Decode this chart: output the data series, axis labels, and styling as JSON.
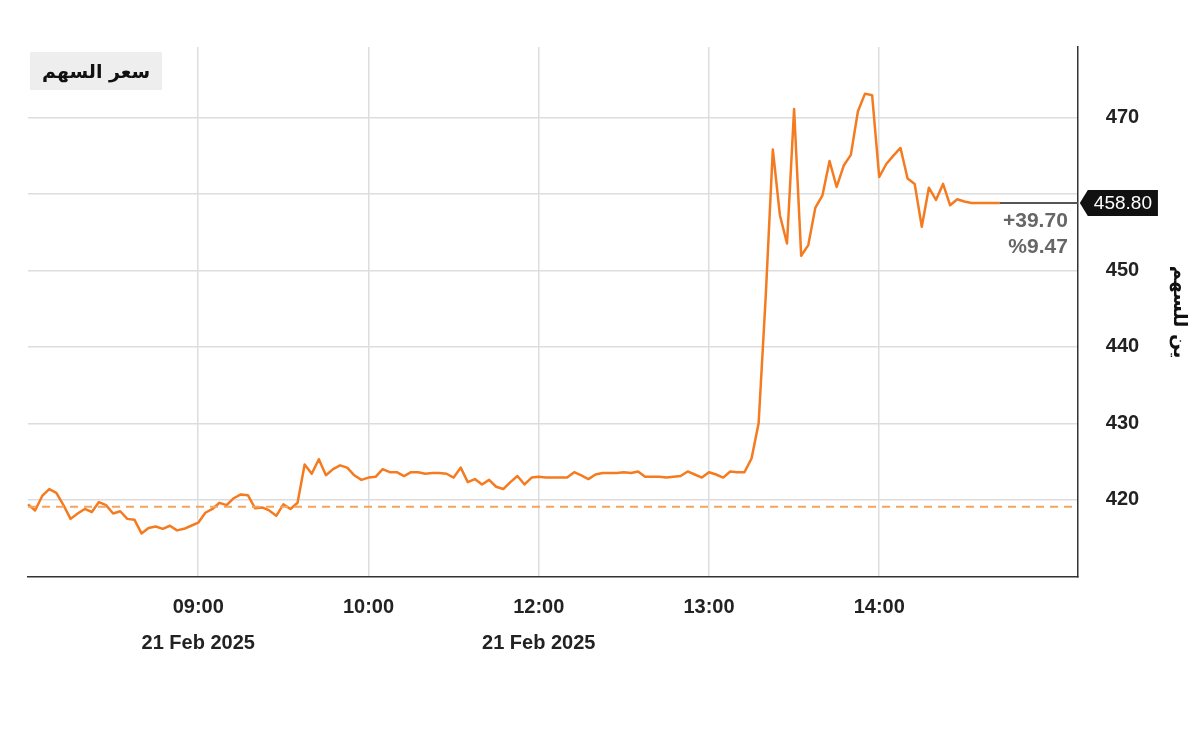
{
  "chart_data": {
    "type": "line",
    "title": "سعر السهم",
    "ylabel": "ين للسهم",
    "categories": [
      null,
      null,
      null,
      null,
      null,
      null,
      null,
      null,
      null,
      null,
      null,
      null,
      null,
      null,
      null,
      null,
      null,
      null,
      null,
      null,
      null,
      null,
      null,
      null,
      "09:00\n21 Feb 2025",
      null,
      null,
      null,
      null,
      null,
      null,
      null,
      null,
      null,
      null,
      null,
      null,
      null,
      null,
      null,
      null,
      null,
      null,
      null,
      null,
      null,
      null,
      null,
      "10:00",
      null,
      null,
      null,
      null,
      null,
      null,
      null,
      null,
      null,
      null,
      null,
      null,
      null,
      null,
      null,
      null,
      null,
      null,
      null,
      null,
      null,
      null,
      null,
      "12:00\n21 Feb 2025",
      null,
      null,
      null,
      null,
      null,
      null,
      null,
      null,
      null,
      null,
      null,
      null,
      null,
      null,
      null,
      null,
      null,
      null,
      null,
      null,
      null,
      null,
      null,
      "13:00",
      null,
      null,
      null,
      null,
      null,
      null,
      null,
      null,
      null,
      null,
      null,
      null,
      null,
      null,
      null,
      null,
      null,
      null,
      null,
      null,
      null,
      null,
      null,
      "14:00",
      null,
      null,
      null,
      null,
      null,
      null,
      null,
      null,
      null,
      null,
      null,
      null,
      null,
      null,
      null,
      null,
      null,
      null,
      null,
      null,
      null,
      null,
      null,
      null,
      null,
      null,
      null,
      null
    ],
    "series": [
      {
        "color": "#f47b20",
        "values": [
          419.4,
          418.6,
          420.5,
          421.4,
          420.9,
          419.3,
          417.5,
          418.2,
          418.8,
          418.4,
          419.7,
          419.3,
          418.2,
          418.5,
          417.5,
          417.4,
          415.6,
          416.3,
          416.5,
          416.2,
          416.6,
          416.0,
          416.2,
          416.6,
          417.0,
          418.3,
          418.8,
          419.6,
          419.3,
          420.2,
          420.7,
          420.6,
          418.9,
          419.0,
          418.6,
          417.9,
          419.4,
          418.8,
          419.6,
          424.6,
          423.4,
          425.3,
          423.2,
          424.0,
          424.5,
          424.2,
          423.2,
          422.6,
          422.9,
          423.0,
          424.0,
          423.6,
          423.6,
          423.1,
          423.6,
          423.6,
          423.4,
          423.5,
          423.5,
          423.4,
          422.9,
          424.2,
          422.3,
          422.7,
          422.0,
          422.6,
          421.7,
          421.4,
          422.3,
          423.1,
          422.0,
          422.9,
          423.0,
          422.9,
          422.9,
          422.9,
          422.9,
          423.6,
          423.2,
          422.7,
          423.3,
          423.5,
          423.5,
          423.5,
          423.6,
          423.5,
          423.7,
          423.0,
          423.0,
          423.0,
          422.9,
          423.0,
          423.1,
          423.7,
          423.3,
          422.9,
          423.6,
          423.3,
          422.9,
          423.7,
          423.6,
          423.6,
          425.4,
          430.0,
          446.6,
          465.8,
          457.2,
          453.5,
          471.1,
          451.9,
          453.3,
          458.2,
          459.8,
          464.3,
          460.9,
          463.7,
          465.1,
          470.8,
          473.1,
          472.9,
          462.2,
          463.9,
          465.0,
          466.0,
          462.0,
          461.3,
          455.7,
          460.8,
          459.2,
          461.3,
          458.5,
          459.3,
          459.0,
          458.8,
          458.8,
          458.8,
          458.8,
          458.8,
          null,
          null,
          null,
          null,
          null,
          null,
          null,
          null,
          null,
          null,
          null
        ]
      }
    ],
    "ylim": [
      409.9,
      479.2
    ],
    "yticks": [
      420,
      430,
      440,
      450,
      {
        "value": 460,
        "label": null
      },
      470
    ],
    "grid": true,
    "legend": false,
    "marker": "none",
    "line_style": "solid",
    "ref_lines": [
      {
        "axis": "y",
        "value": 419.1,
        "color": "#f4a460",
        "line_style": "dashed"
      },
      {
        "axis": "y",
        "value": 458.8,
        "label": "458.80",
        "color": "#555555",
        "line_style": "solid"
      }
    ],
    "annotations": [
      "+39.70",
      "%9.47"
    ]
  }
}
